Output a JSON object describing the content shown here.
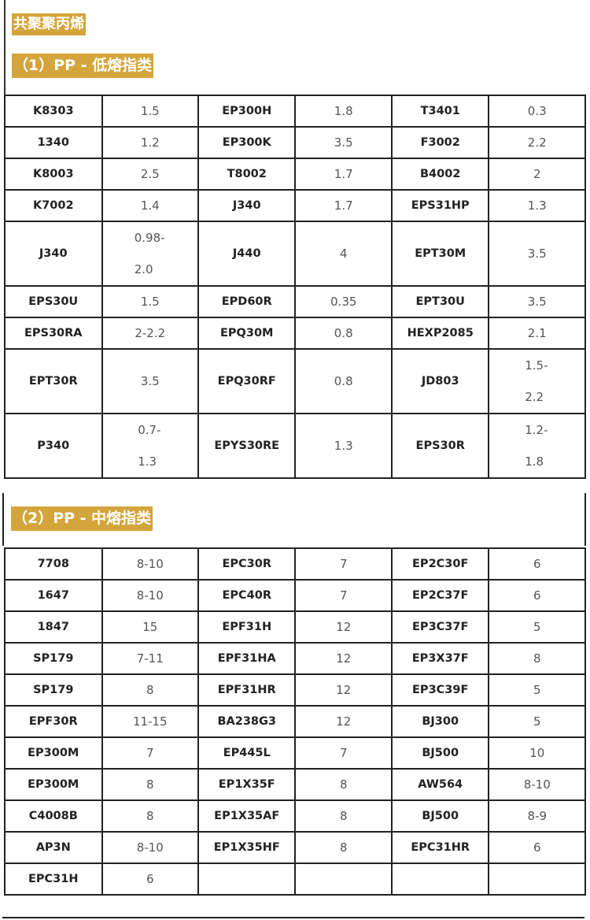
{
  "title": "共聚聚丙烯",
  "accent_color": "#D4A53C",
  "section1": {
    "heading": "（1）PP - 低熔指类",
    "rows": [
      [
        "K8303",
        "1.5",
        "EP300H",
        "1.8",
        "T3401",
        "0.3"
      ],
      [
        "1340",
        "1.2",
        "EP300K",
        "3.5",
        "F3002",
        "2.2"
      ],
      [
        "K8003",
        "2.5",
        "T8002",
        "1.7",
        "B4002",
        "2"
      ],
      [
        "K7002",
        "1.4",
        "J340",
        "1.7",
        "EPS31HP",
        "1.3"
      ],
      [
        "J340",
        "0.98-2.0",
        "J440",
        "4",
        "EPT30M",
        "3.5"
      ],
      [
        "EPS30U",
        "1.5",
        "EPD60R",
        "0.35",
        "EPT30U",
        "3.5"
      ],
      [
        "EPS30RA",
        "2-2.2",
        "EPQ30M",
        "0.8",
        "HEXP2085",
        "2.1"
      ],
      [
        "EPT30R",
        "3.5",
        "EPQ30RF",
        "0.8",
        "JD803",
        "1.5-2.2"
      ],
      [
        "P340",
        "0.7-1.3",
        "EPYS30RE",
        "1.3",
        "EPS30R",
        "1.2-1.8"
      ]
    ]
  },
  "section2": {
    "heading": "（2）PP - 中熔指类",
    "rows": [
      [
        "7708",
        "8-10",
        "EPC30R",
        "7",
        "EP2C30F",
        "6"
      ],
      [
        "1647",
        "8-10",
        "EPC40R",
        "7",
        "EP2C37F",
        "6"
      ],
      [
        "1847",
        "15",
        "EPF31H",
        "12",
        "EP3C37F",
        "5"
      ],
      [
        "SP179",
        "7-11",
        "EPF31HA",
        "12",
        "EP3X37F",
        "8"
      ],
      [
        "SP179",
        "8",
        "EPF31HR",
        "12",
        "EP3C39F",
        "5"
      ],
      [
        "EPF30R",
        "11-15",
        "BA238G3",
        "12",
        "BJ300",
        "5"
      ],
      [
        "EP300M",
        "7",
        "EP445L",
        "7",
        "BJ500",
        "10"
      ],
      [
        "EP300M",
        "8",
        "EP1X35F",
        "8",
        "AW564",
        "8-10"
      ],
      [
        "C4008B",
        "8",
        "EP1X35AF",
        "8",
        "BJ500",
        "8-9"
      ],
      [
        "AP3N",
        "8-10",
        "EP1X35HF",
        "8",
        "EPC31HR",
        "6"
      ],
      [
        "EPC31H",
        "6",
        "",
        "",
        "",
        ""
      ]
    ]
  }
}
